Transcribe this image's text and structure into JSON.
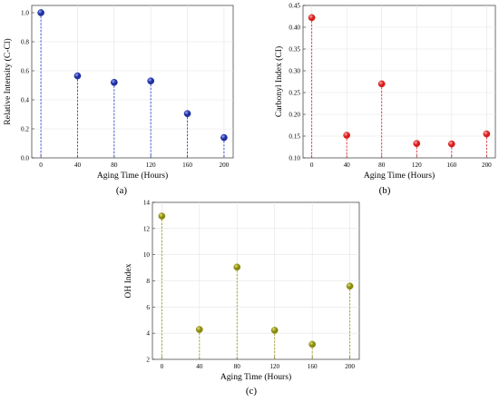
{
  "panels": [
    {
      "label": "(a)",
      "colors": {
        "marker": "#1f2f9e",
        "highlight": "#9aa8ff",
        "stem": "#2b3fcf"
      }
    },
    {
      "label": "(b)",
      "colors": {
        "marker": "#d81e1e",
        "highlight": "#ffb0b0",
        "stem": "#e0262a"
      }
    },
    {
      "label": "(c)",
      "colors": {
        "marker": "#8a8a10",
        "highlight": "#e6e27a",
        "stem": "#9c9a1c"
      }
    }
  ],
  "chart_data": [
    {
      "type": "scatter",
      "style": "dropline",
      "title": "",
      "xlabel": "Aging Time (Hours)",
      "ylabel": "Relative Intensity (C-Cl)",
      "x": [
        0,
        40,
        80,
        120,
        160,
        200
      ],
      "y": [
        1.0,
        0.565,
        0.52,
        0.53,
        0.305,
        0.14
      ],
      "xticks": [
        "0",
        "40",
        "80",
        "120",
        "160",
        "200"
      ],
      "yticks": [
        "0.0",
        "0.2",
        "0.4",
        "0.6",
        "0.8",
        "1.0"
      ],
      "xlim": [
        -10,
        210
      ],
      "ylim": [
        0,
        1.05
      ],
      "grid": true
    },
    {
      "type": "scatter",
      "style": "dropline",
      "title": "",
      "xlabel": "Aging Time (Hours)",
      "ylabel": "Carbonyl Index (CI)",
      "x": [
        0,
        40,
        80,
        120,
        160,
        200
      ],
      "y": [
        0.422,
        0.152,
        0.27,
        0.133,
        0.132,
        0.155
      ],
      "xticks": [
        "0",
        "40",
        "80",
        "120",
        "160",
        "200"
      ],
      "yticks": [
        "0.10",
        "0.15",
        "0.20",
        "0.25",
        "0.30",
        "0.35",
        "0.40",
        "0.45"
      ],
      "xlim": [
        -10,
        210
      ],
      "ylim": [
        0.1,
        0.45
      ],
      "grid": true
    },
    {
      "type": "scatter",
      "style": "dropline",
      "title": "",
      "xlabel": "Aging Time (Hours)",
      "ylabel": "OH Index",
      "x": [
        0,
        40,
        80,
        120,
        160,
        200
      ],
      "y": [
        12.95,
        4.28,
        9.05,
        4.22,
        3.15,
        7.6
      ],
      "xticks": [
        "0",
        "40",
        "80",
        "120",
        "160",
        "200"
      ],
      "yticks": [
        "2",
        "4",
        "6",
        "8",
        "10",
        "12",
        "14"
      ],
      "xlim": [
        -10,
        210
      ],
      "ylim": [
        2,
        14
      ],
      "grid": true
    }
  ]
}
